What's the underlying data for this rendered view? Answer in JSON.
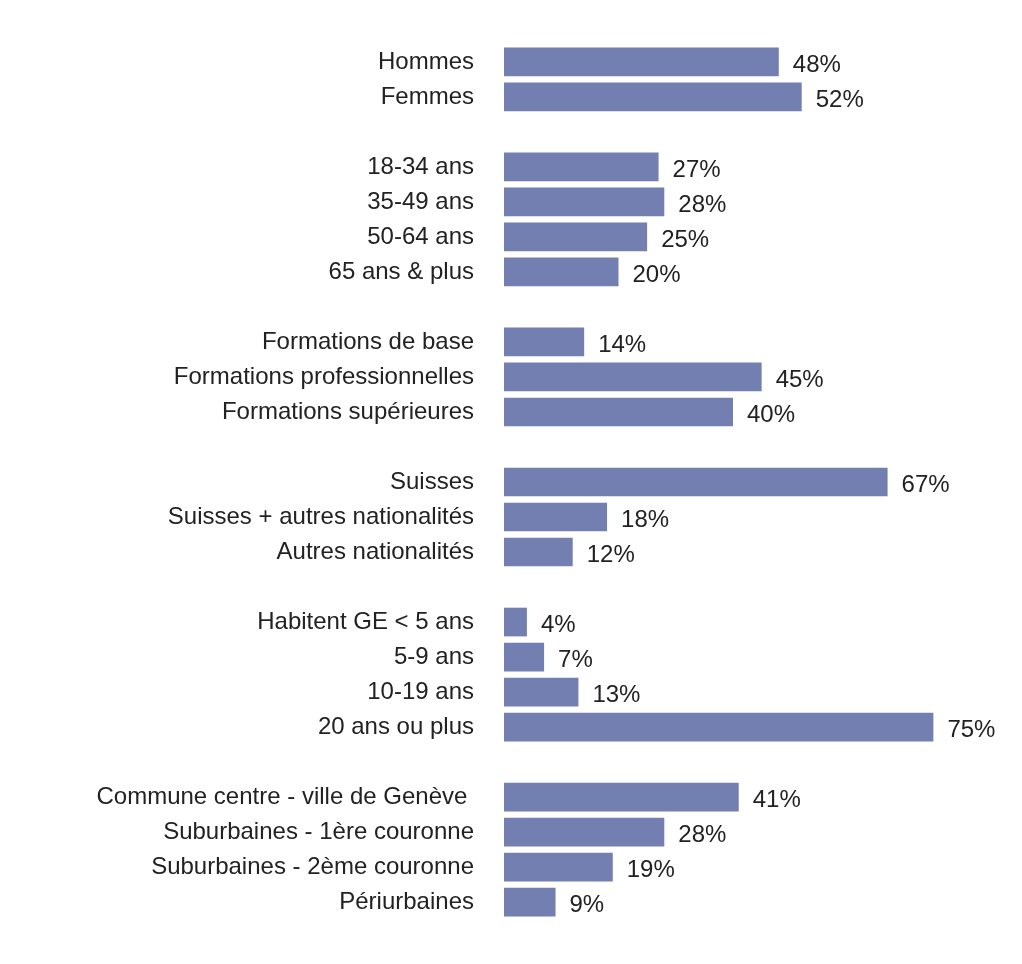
{
  "chart_data": {
    "type": "bar",
    "orientation": "horizontal",
    "categories": [
      "Hommes",
      "Femmes",
      null,
      "18-34 ans",
      "35-49 ans",
      "50-64 ans",
      "65 ans & plus",
      null,
      "Formations de base",
      "Formations professionnelles",
      "Formations supérieures",
      null,
      "Suisses",
      "Suisses + autres nationalités",
      "Autres nationalités",
      null,
      "Habitent GE < 5 ans",
      "5-9 ans",
      "10-19 ans",
      "20 ans ou plus",
      null,
      "Commune centre - ville de Genève ",
      "Suburbaines - 1ère couronne",
      "Suburbaines - 2ème couronne",
      "Périurbaines"
    ],
    "values": [
      48,
      52,
      null,
      27,
      28,
      25,
      20,
      null,
      14,
      45,
      40,
      null,
      67,
      18,
      12,
      null,
      4,
      7,
      13,
      75,
      null,
      41,
      28,
      19,
      9
    ],
    "value_labels": [
      "48%",
      "52%",
      null,
      "27%",
      "28%",
      "25%",
      "20%",
      null,
      "14%",
      "45%",
      "40%",
      null,
      "67%",
      "18%",
      "12%",
      null,
      "4%",
      "7%",
      "13%",
      "75%",
      null,
      "41%",
      "28%",
      "19%",
      "9%"
    ],
    "color": "#727fb0",
    "tick_labels": "y",
    "grid": false,
    "legend": false
  }
}
